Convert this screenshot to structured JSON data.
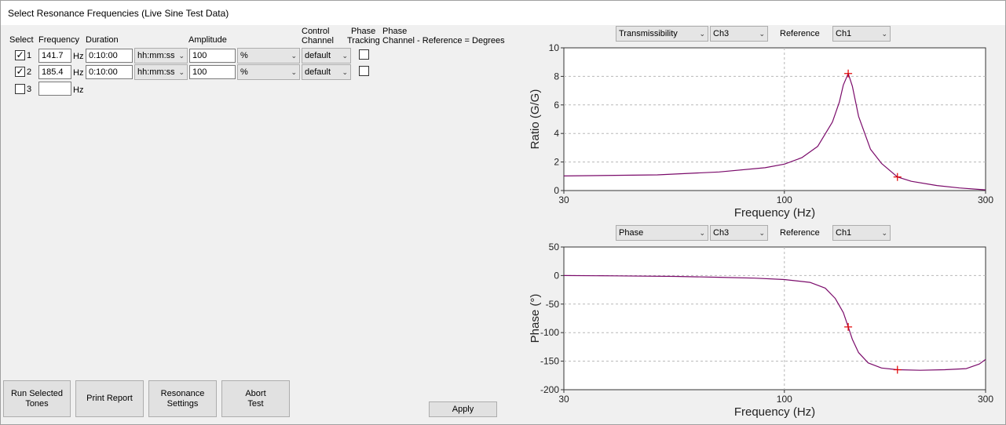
{
  "window": {
    "title": "Select Resonance Frequencies (Live Sine Test Data)"
  },
  "headers": {
    "select": "Select",
    "frequency": "Frequency",
    "duration": "Duration",
    "amplitude": "Amplitude",
    "control_channel_1": "Control",
    "control_channel_2": "Channel",
    "phase_tracking_1": "Phase",
    "phase_tracking_2": "Tracking",
    "phase_channel_1": "Phase",
    "phase_channel_2": "Channel - Reference = Degrees"
  },
  "rows": [
    {
      "num": "1",
      "checked": "✓",
      "frequency": "141.7",
      "hz": "Hz",
      "duration": "0:10:00",
      "duration_unit": "hh:mm:ss",
      "amplitude": "100",
      "amp_unit": "%",
      "control": "default"
    },
    {
      "num": "2",
      "checked": "✓",
      "frequency": "185.4",
      "hz": "Hz",
      "duration": "0:10:00",
      "duration_unit": "hh:mm:ss",
      "amplitude": "100",
      "amp_unit": "%",
      "control": "default"
    },
    {
      "num": "3",
      "checked": "",
      "frequency": "",
      "hz": "Hz"
    }
  ],
  "buttons": {
    "run_1": "Run Selected",
    "run_2": "Tones",
    "print": "Print Report",
    "res_1": "Resonance",
    "res_2": "Settings",
    "abort_1": "Abort",
    "abort_2": "Test",
    "apply": "Apply"
  },
  "top_controls": {
    "measure": "Transmissibility",
    "channel": "Ch3",
    "reference_label": "Reference",
    "reference": "Ch1"
  },
  "bottom_controls": {
    "measure": "Phase",
    "channel": "Ch3",
    "reference_label": "Reference",
    "reference": "Ch1"
  },
  "chart_data": [
    {
      "type": "line",
      "xscale": "log",
      "xlim": [
        30,
        300
      ],
      "ylim": [
        0,
        10
      ],
      "xticks": [
        30,
        100,
        300
      ],
      "yticks": [
        0,
        2,
        4,
        6,
        8,
        10
      ],
      "xlabel": "Frequency (Hz)",
      "ylabel": "Ratio (G/G)",
      "grid": true,
      "line_color": "#7a0a6a",
      "marker_color": "#e00000",
      "x": [
        30,
        50,
        70,
        90,
        100,
        110,
        120,
        130,
        135,
        138,
        141.7,
        145,
        150,
        160,
        170,
        185.4,
        200,
        230,
        260,
        300
      ],
      "y": [
        1.02,
        1.1,
        1.3,
        1.6,
        1.85,
        2.3,
        3.1,
        4.8,
        6.2,
        7.4,
        8.2,
        7.3,
        5.2,
        2.9,
        1.9,
        0.95,
        0.65,
        0.35,
        0.18,
        0.05
      ],
      "markers": [
        {
          "x": 141.7,
          "y": 8.2
        },
        {
          "x": 185.4,
          "y": 0.95
        }
      ]
    },
    {
      "type": "line",
      "xscale": "log",
      "xlim": [
        30,
        300
      ],
      "ylim": [
        -200,
        50
      ],
      "xticks": [
        30,
        100,
        300
      ],
      "yticks": [
        50,
        0,
        -50,
        -100,
        -150,
        -200
      ],
      "xlabel": "Frequency (Hz)",
      "ylabel": "Phase (°)",
      "grid": true,
      "line_color": "#7a0a6a",
      "marker_color": "#e00000",
      "x": [
        30,
        40,
        55,
        70,
        85,
        100,
        115,
        125,
        132,
        138,
        141.7,
        145,
        150,
        158,
        170,
        185.4,
        210,
        240,
        270,
        290,
        300
      ],
      "y": [
        0,
        -0.5,
        -1.5,
        -3,
        -4.5,
        -7,
        -12,
        -22,
        -40,
        -65,
        -90,
        -112,
        -135,
        -153,
        -162,
        -165,
        -166,
        -165,
        -163,
        -155,
        -147
      ],
      "markers": [
        {
          "x": 141.7,
          "y": -90
        },
        {
          "x": 185.4,
          "y": -165
        }
      ]
    }
  ]
}
